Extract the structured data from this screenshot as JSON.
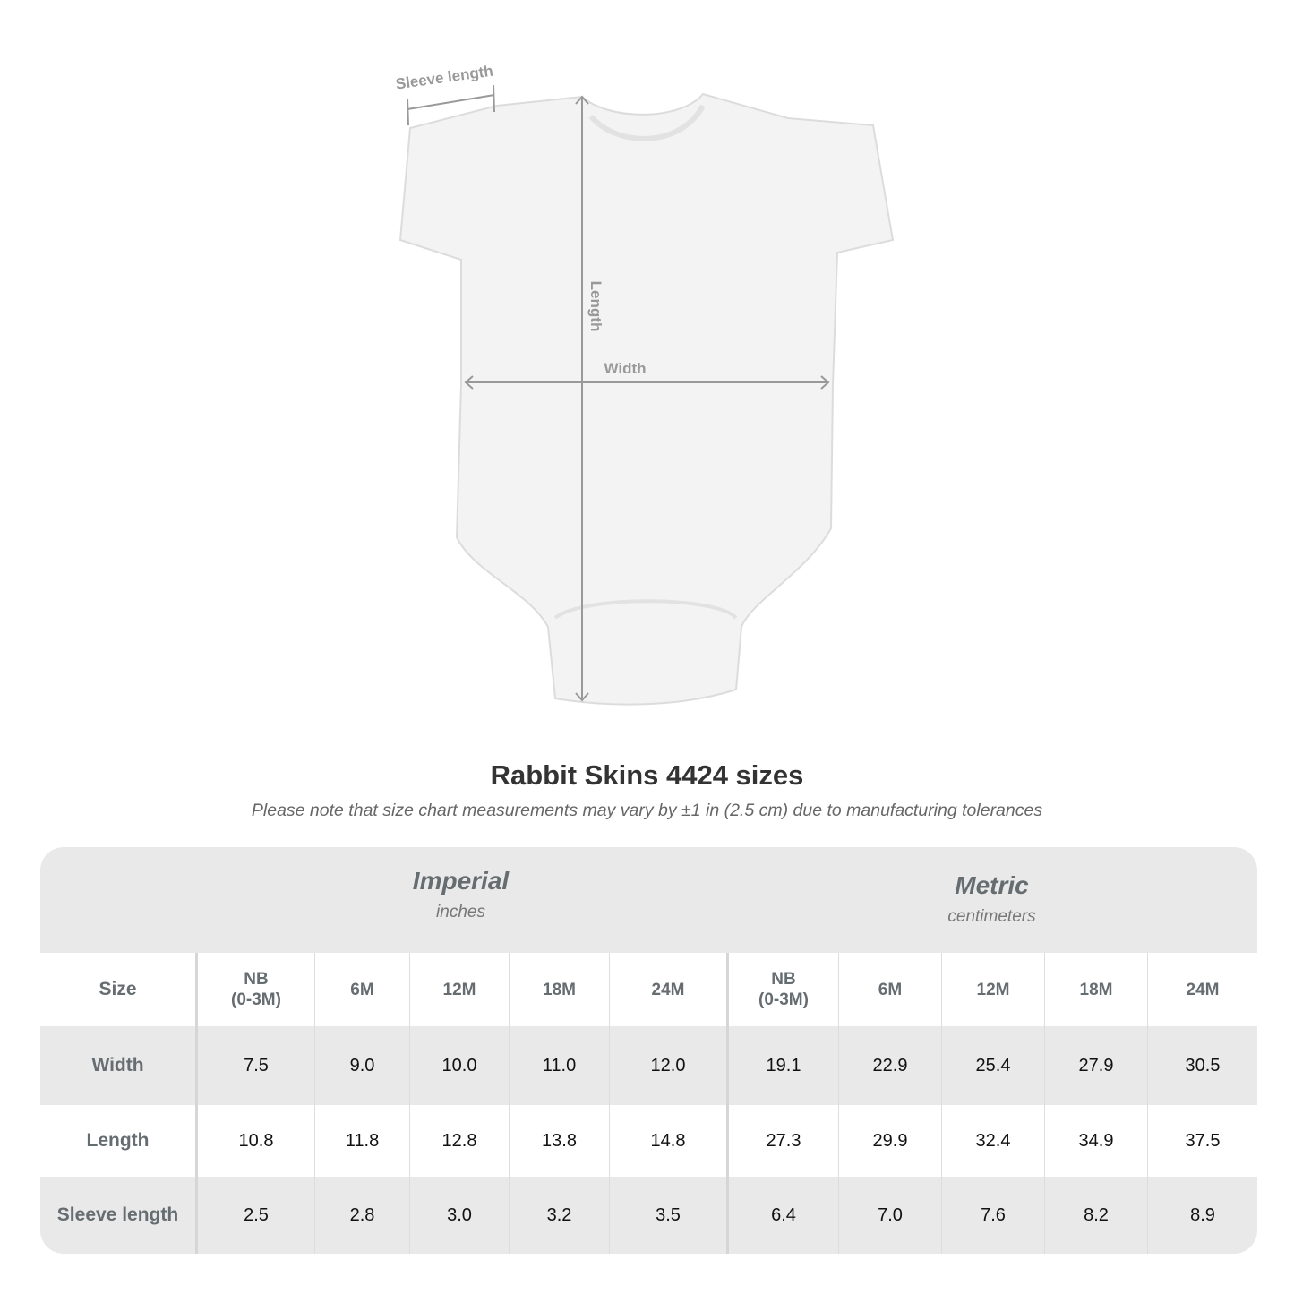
{
  "diagram": {
    "labels": {
      "sleeve": "Sleeve length",
      "length": "Length",
      "width": "Width"
    }
  },
  "title": "Rabbit Skins 4424 sizes",
  "subtitle": "Please note that size chart measurements may vary by ±1 in (2.5 cm) due to manufacturing tolerances",
  "table": {
    "imperial": {
      "name": "Imperial",
      "unit": "inches"
    },
    "metric": {
      "name": "Metric",
      "unit": "centimeters"
    },
    "size_label": "Size",
    "sizes": [
      "NB (0-3M)",
      "6M",
      "12M",
      "18M",
      "24M",
      "NB (0-3M)",
      "6M",
      "12M",
      "18M",
      "24M"
    ],
    "rows": [
      {
        "label": "Width",
        "values": [
          "7.5",
          "9.0",
          "10.0",
          "11.0",
          "12.0",
          "19.1",
          "22.9",
          "25.4",
          "27.9",
          "30.5"
        ]
      },
      {
        "label": "Length",
        "values": [
          "10.8",
          "11.8",
          "12.8",
          "13.8",
          "14.8",
          "27.3",
          "29.9",
          "32.4",
          "34.9",
          "37.5"
        ]
      },
      {
        "label": "Sleeve length",
        "values": [
          "2.5",
          "2.8",
          "3.0",
          "3.2",
          "3.5",
          "6.4",
          "7.0",
          "7.6",
          "8.2",
          "8.9"
        ]
      }
    ]
  },
  "colors": {
    "header_text": "#666d70",
    "band": "#e9e9e9",
    "measure_line": "#999999"
  }
}
